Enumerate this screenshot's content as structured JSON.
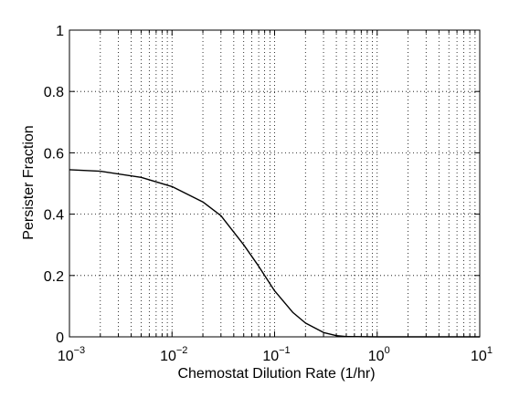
{
  "chart_data": {
    "type": "line",
    "title": "",
    "xlabel": "Chemostat Dilution Rate (1/hr)",
    "ylabel": "Persister Fraction",
    "x_scale": "log",
    "xlim": [
      0.001,
      10
    ],
    "ylim": [
      0,
      1
    ],
    "grid": true,
    "grid_style": "dotted",
    "line_color": "#000000",
    "x_ticks": [
      {
        "value": 0.001,
        "base": "10",
        "exp": "−3"
      },
      {
        "value": 0.01,
        "base": "10",
        "exp": "−2"
      },
      {
        "value": 0.1,
        "base": "10",
        "exp": "−1"
      },
      {
        "value": 1,
        "base": "10",
        "exp": "0"
      },
      {
        "value": 10,
        "base": "10",
        "exp": "1"
      }
    ],
    "y_ticks": [
      {
        "value": 0,
        "label": "0"
      },
      {
        "value": 0.2,
        "label": "0.2"
      },
      {
        "value": 0.4,
        "label": "0.4"
      },
      {
        "value": 0.6,
        "label": "0.6"
      },
      {
        "value": 0.8,
        "label": "0.8"
      },
      {
        "value": 1,
        "label": "1"
      }
    ],
    "series": [
      {
        "x": [
          0.001,
          0.002,
          0.005,
          0.01,
          0.02,
          0.03,
          0.05,
          0.07,
          0.1,
          0.15,
          0.2,
          0.3,
          0.4,
          0.5,
          1,
          2,
          5,
          10
        ],
        "y": [
          0.545,
          0.54,
          0.52,
          0.49,
          0.44,
          0.395,
          0.3,
          0.23,
          0.15,
          0.08,
          0.045,
          0.014,
          0.004,
          0.001,
          0,
          0,
          0,
          0
        ]
      }
    ]
  }
}
